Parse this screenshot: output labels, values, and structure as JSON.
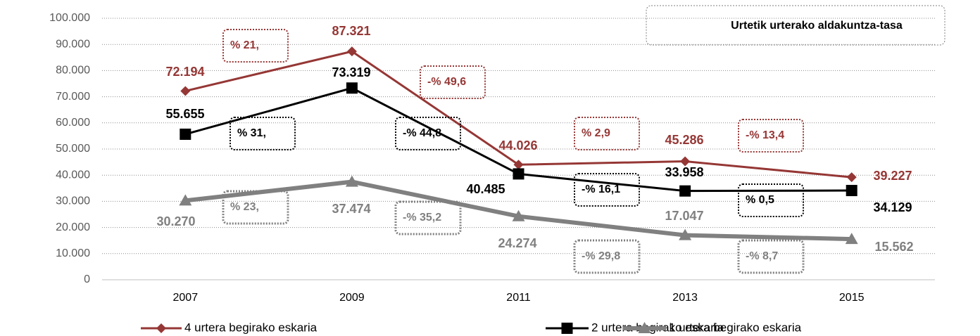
{
  "chart_data": {
    "type": "line",
    "annotation": "Urtetik urterako aldakuntza-tasa",
    "categories": [
      "2007",
      "2009",
      "2011",
      "2013",
      "2015"
    ],
    "ylim": [
      0,
      100000
    ],
    "yticks": [
      0,
      {
        "value": 10000,
        "label": "10.000"
      },
      {
        "value": 20000,
        "label": "20.000"
      },
      {
        "value": 30000,
        "label": "30.000"
      },
      {
        "value": 40000,
        "label": "40.000"
      },
      {
        "value": 50000,
        "label": "50.000"
      },
      {
        "value": 60000,
        "label": "60.000"
      },
      {
        "value": 70000,
        "label": "70.000"
      },
      {
        "value": 80000,
        "label": "80.000"
      },
      {
        "value": 90000,
        "label": "90.000"
      },
      {
        "value": 100000,
        "label": "100.000"
      }
    ],
    "grid": true,
    "legend": "bottom",
    "series": [
      {
        "name": "4 urtera begirako eskaria",
        "color": "#953735",
        "marker": "diamond",
        "values": [
          72194,
          87321,
          44026,
          45286,
          39227
        ],
        "value_labels": [
          "72.194",
          "87.321",
          "44.026",
          "45.286",
          "39.227"
        ],
        "change_labels": [
          "% 21,",
          "-% 49,6",
          "% 2,9",
          "-% 13,4"
        ]
      },
      {
        "name": "2 urtera begirako eskaria",
        "color": "#000000",
        "marker": "square",
        "values": [
          55655,
          73319,
          40485,
          33958,
          34129
        ],
        "value_labels": [
          "55.655",
          "73.319",
          "40.485",
          "33.958",
          "34.129"
        ],
        "change_labels": [
          "% 31,",
          "-% 44,8",
          "-% 16,1",
          "% 0,5"
        ]
      },
      {
        "name": "1 urtera begirako eskaria",
        "color": "#808080",
        "marker": "triangle",
        "values": [
          30270,
          37474,
          24274,
          17047,
          15562
        ],
        "value_labels": [
          "30.270",
          "37.474",
          "24.274",
          "17.047",
          "15.562"
        ],
        "change_labels": [
          "% 23,",
          "-% 35,2",
          "-% 29,8",
          "-% 8,7"
        ]
      }
    ]
  }
}
